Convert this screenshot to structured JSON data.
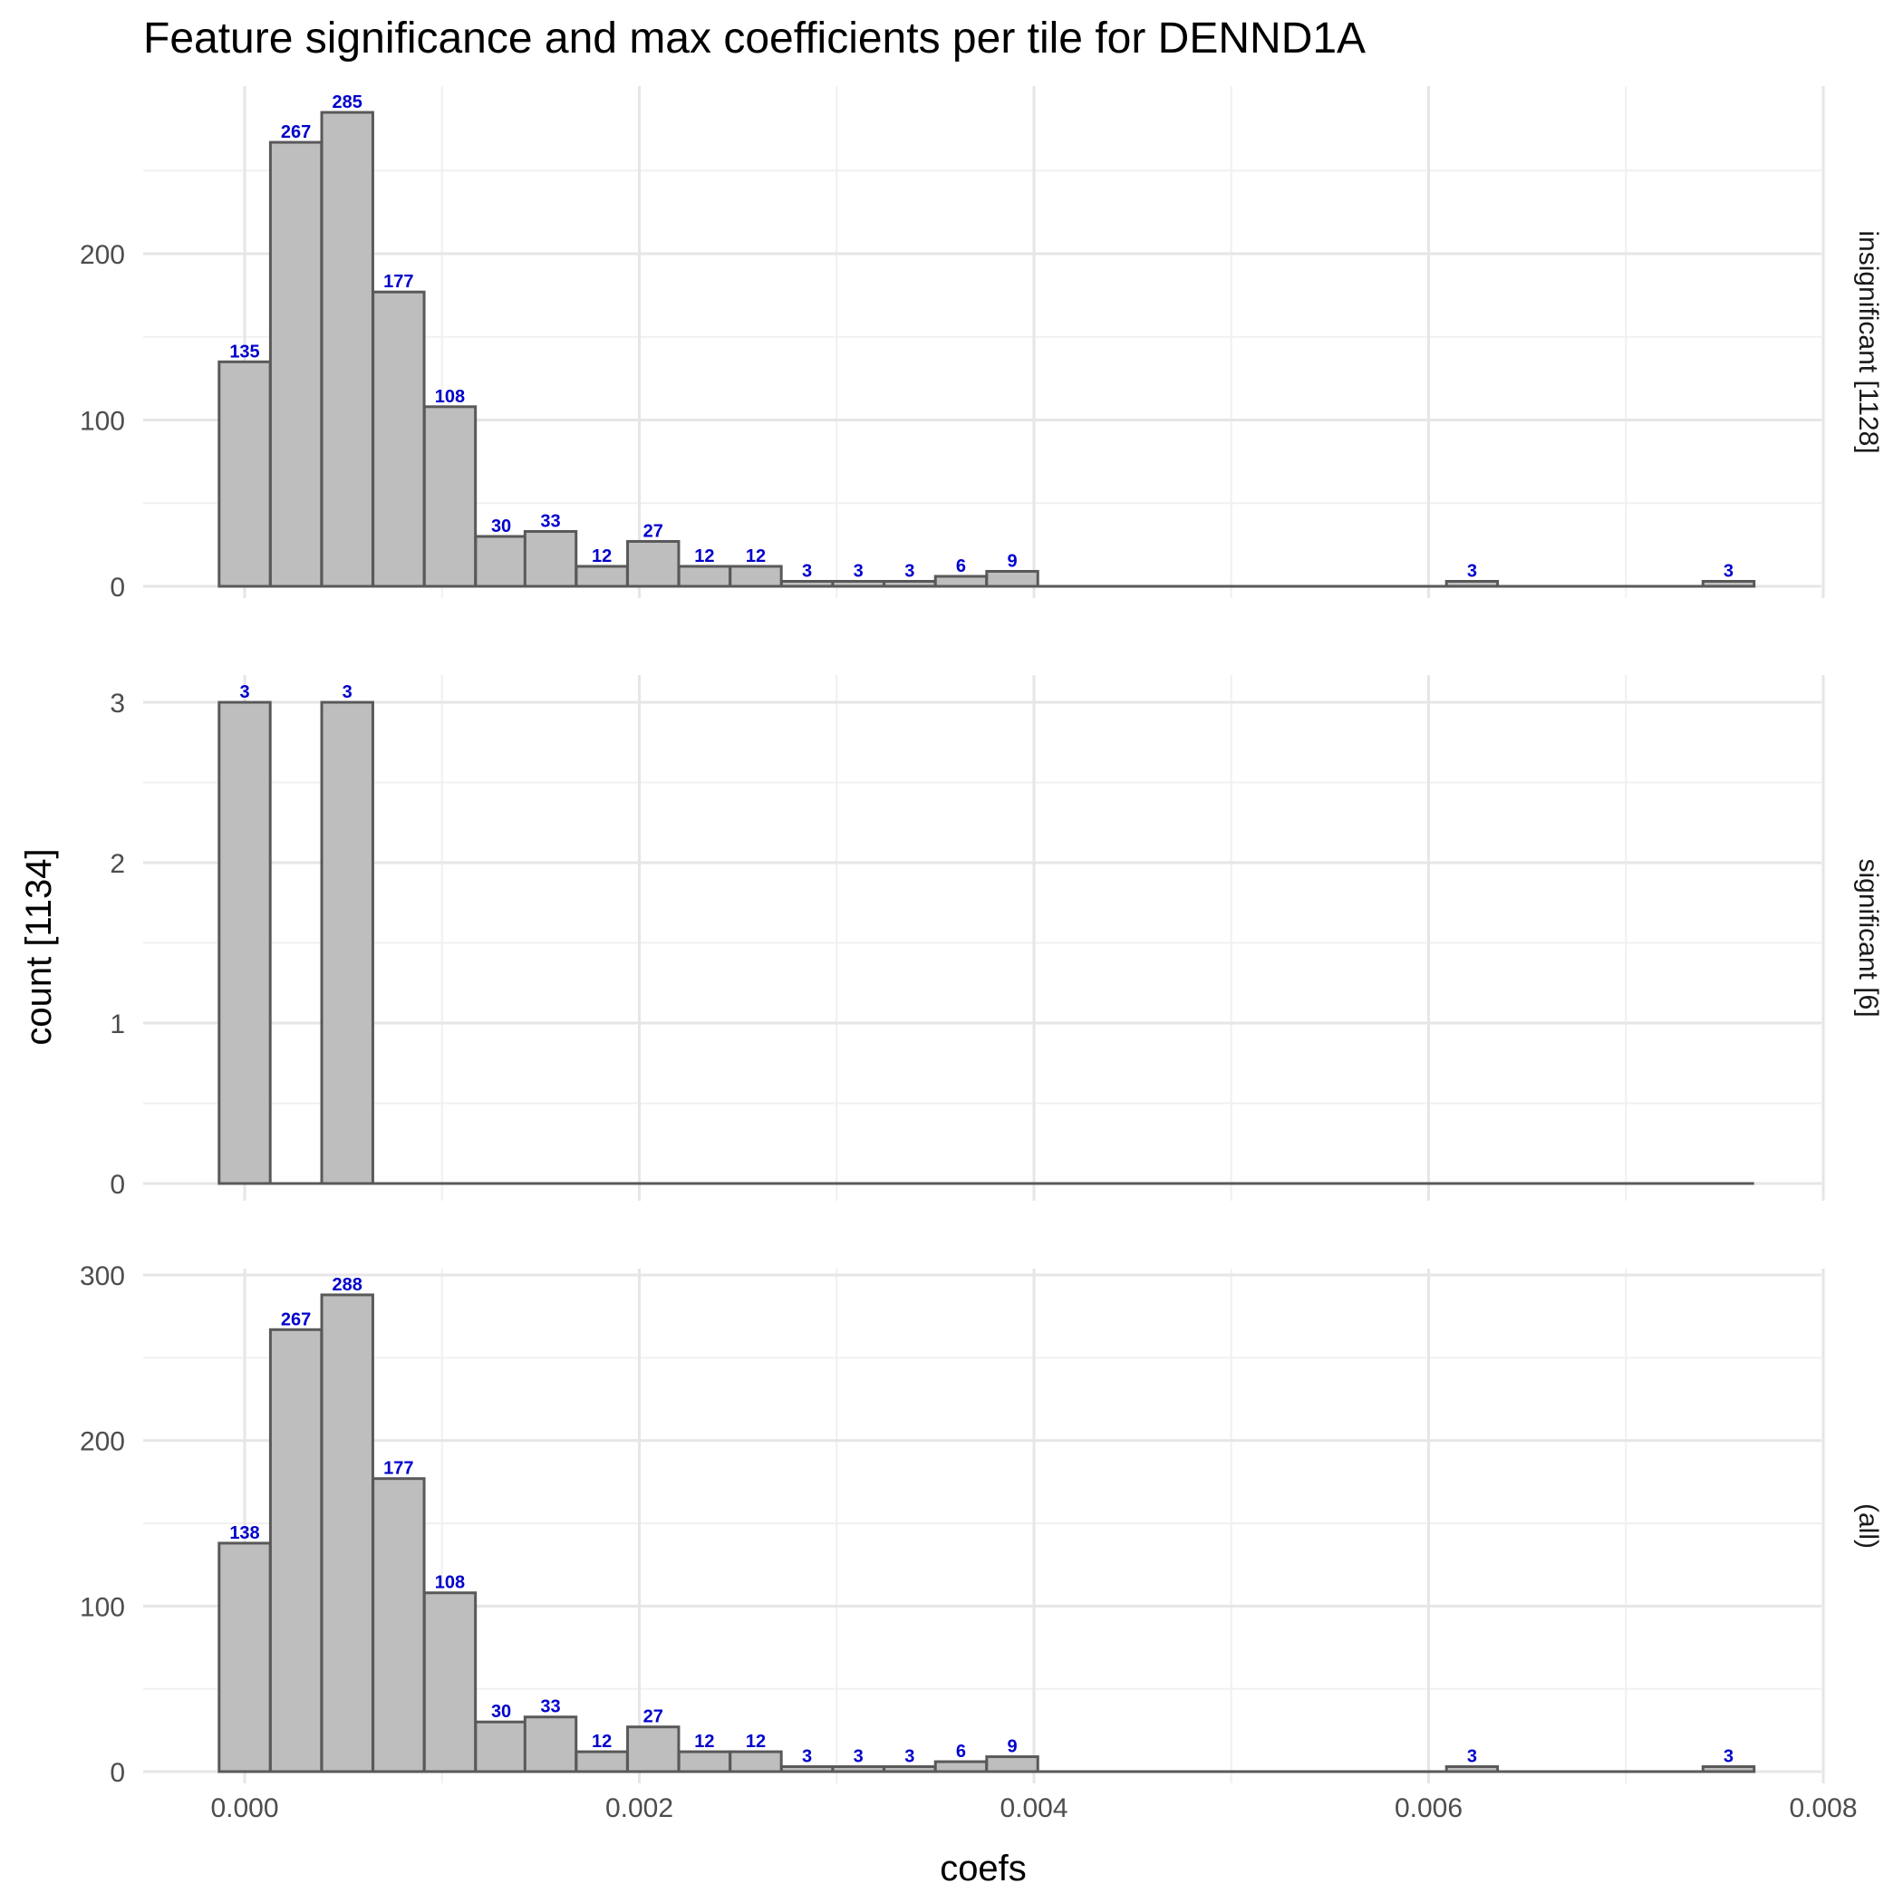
{
  "chart_data": {
    "type": "bar",
    "title": "Feature significance and max coefficients per tile for DENND1A",
    "xlabel": "coefs",
    "ylabel": "count [1134]",
    "xlim": [
      -0.0001,
      0.008
    ],
    "x_ticks": [
      0.0,
      0.002,
      0.004,
      0.006,
      0.008
    ],
    "x_tick_labels": [
      "0.000",
      "0.002",
      "0.004",
      "0.006",
      "0.008"
    ],
    "bin_centers": [
      0.0,
      0.00026,
      0.00052,
      0.00078,
      0.00104,
      0.0013,
      0.00155,
      0.00181,
      0.00207,
      0.00233,
      0.00259,
      0.00285,
      0.00311,
      0.00337,
      0.00363,
      0.00389,
      0.00415,
      0.00441,
      0.00467,
      0.00492,
      0.00518,
      0.00544,
      0.0057,
      0.00596,
      0.00622,
      0.00648,
      0.00674,
      0.007,
      0.00726,
      0.00752
    ],
    "grid": true,
    "label_color": "#0000cc",
    "bar_fill": "#bebebe",
    "bar_stroke": "#595959",
    "panels": [
      {
        "name": "insignificant [1128]",
        "counts": [
          135,
          267,
          285,
          177,
          108,
          30,
          33,
          12,
          27,
          12,
          12,
          3,
          3,
          3,
          6,
          9,
          0,
          0,
          0,
          0,
          0,
          0,
          0,
          0,
          3,
          0,
          0,
          0,
          0,
          3
        ],
        "ylim": [
          0,
          300
        ],
        "y_ticks": [
          0,
          100,
          200
        ],
        "y_tick_labels": [
          "0",
          "100",
          "200"
        ]
      },
      {
        "name": "significant [6]",
        "counts": [
          3,
          0,
          3,
          0,
          0,
          0,
          0,
          0,
          0,
          0,
          0,
          0,
          0,
          0,
          0,
          0,
          0,
          0,
          0,
          0,
          0,
          0,
          0,
          0,
          0,
          0,
          0,
          0,
          0,
          0
        ],
        "ylim": [
          0,
          3
        ],
        "y_ticks": [
          0,
          1,
          2,
          3
        ],
        "y_tick_labels": [
          "0",
          "1",
          "2",
          "3"
        ]
      },
      {
        "name": "(all)",
        "counts": [
          138,
          267,
          288,
          177,
          108,
          30,
          33,
          12,
          27,
          12,
          12,
          3,
          3,
          3,
          6,
          9,
          0,
          0,
          0,
          0,
          0,
          0,
          0,
          0,
          3,
          0,
          0,
          0,
          0,
          3
        ],
        "ylim": [
          0,
          300
        ],
        "y_ticks": [
          0,
          100,
          200,
          300
        ],
        "y_tick_labels": [
          "0",
          "100",
          "200",
          "300"
        ]
      }
    ]
  }
}
